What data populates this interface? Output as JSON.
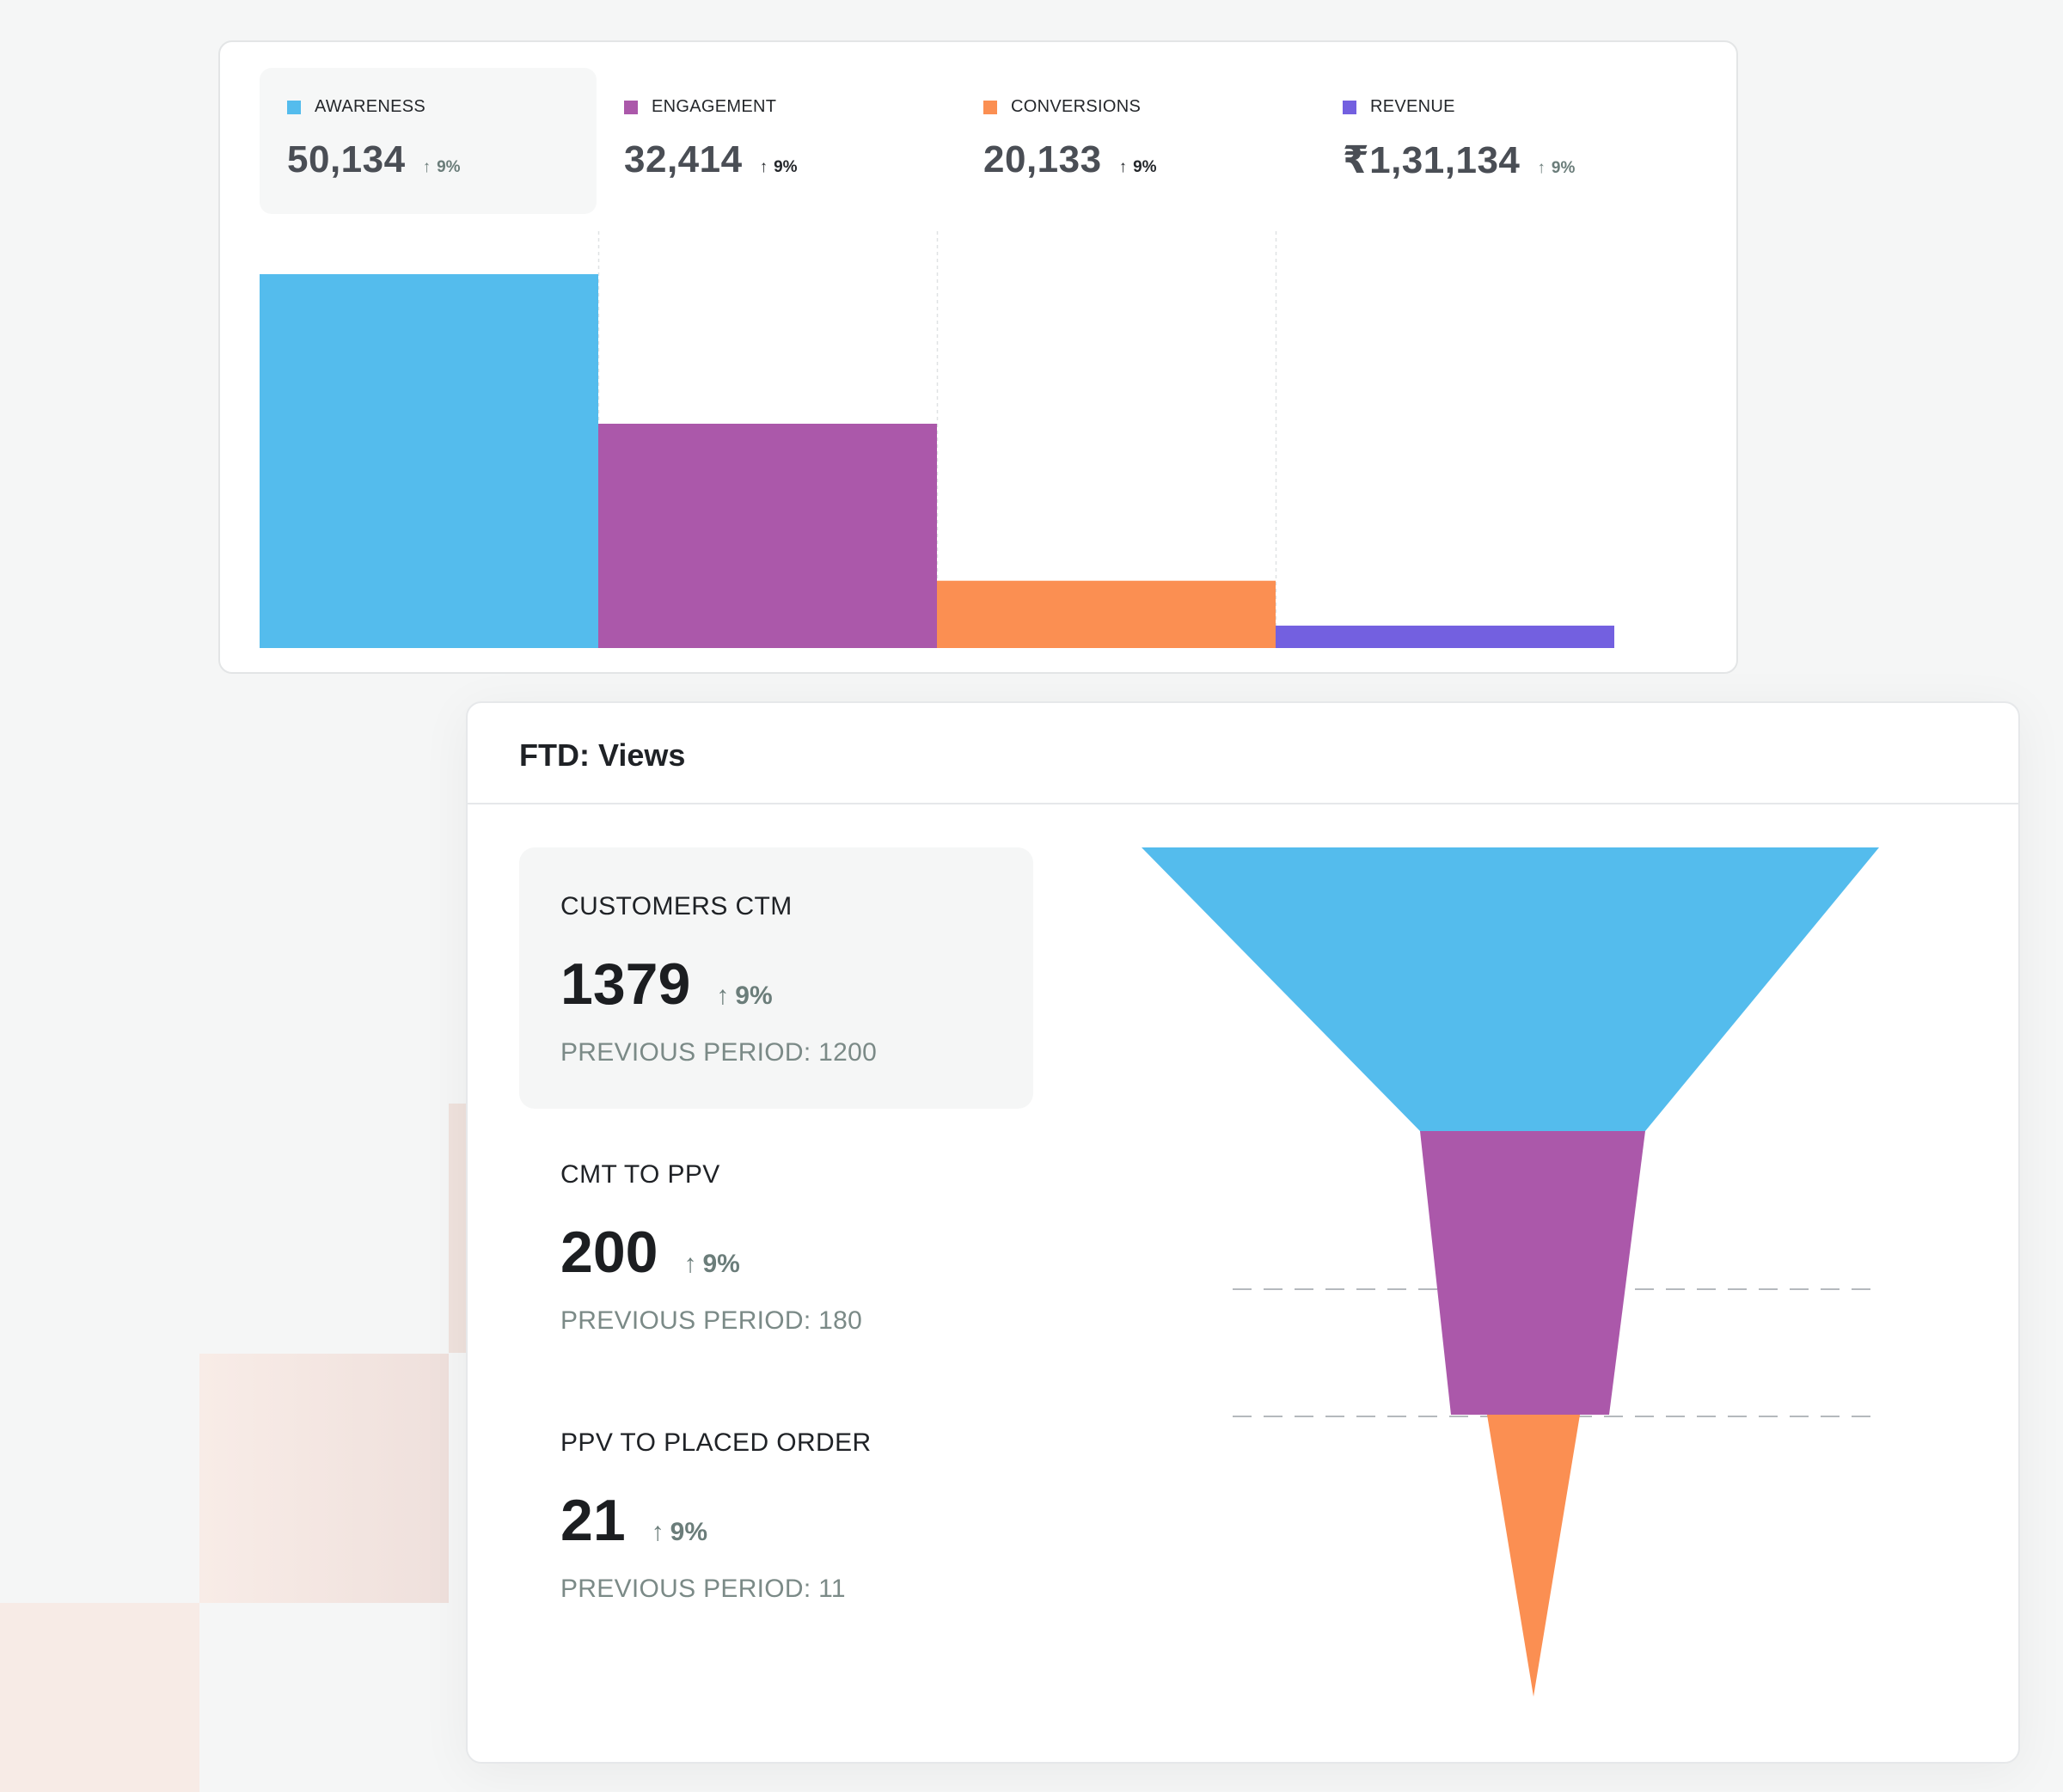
{
  "colors": {
    "awareness": "#54bced",
    "engagement": "#ab58aa",
    "conversions": "#fb8f52",
    "revenue": "#7360e0",
    "change_text": "#6b7d7a",
    "guide": "#b5b9bd"
  },
  "top_card": {
    "metrics": [
      {
        "label": "AWARENESS",
        "value": "50,134",
        "change": "9%",
        "change_icon": "arrow-up-icon",
        "color_key": "awareness"
      },
      {
        "label": "ENGAGEMENT",
        "value": "32,414",
        "change": "9%",
        "change_icon": "arrow-up-icon",
        "color_key": "engagement"
      },
      {
        "label": "CONVERSIONS",
        "value": "20,133",
        "change": "9%",
        "change_icon": "arrow-up-icon",
        "color_key": "conversions"
      },
      {
        "label": "REVENUE",
        "value": "₹1,31,134",
        "change": "9%",
        "change_icon": "arrow-up-icon",
        "color_key": "revenue"
      }
    ]
  },
  "funnel_card": {
    "title": "FTD: Views",
    "stages": [
      {
        "label": "CUSTOMERS CTM",
        "value": "1379",
        "change": "9%",
        "change_icon": "arrow-up-icon",
        "previous": "PREVIOUS PERIOD: 1200"
      },
      {
        "label": "CMT TO PPV",
        "value": "200",
        "change": "9%",
        "change_icon": "arrow-up-icon",
        "previous": "PREVIOUS PERIOD: 180"
      },
      {
        "label": "PPV TO PLACED ORDER",
        "value": "21",
        "change": "9%",
        "change_icon": "arrow-up-icon",
        "previous": "PREVIOUS PERIOD: 11"
      }
    ]
  },
  "chart_data": [
    {
      "type": "bar",
      "categories": [
        "AWARENESS",
        "ENGAGEMENT",
        "CONVERSIONS",
        "REVENUE"
      ],
      "values": [
        100,
        60,
        18,
        6
      ],
      "value_unit": "relative height, % of tallest bar",
      "title": "",
      "xlabel": "",
      "ylabel": "",
      "ylim": [
        0,
        100
      ]
    },
    {
      "type": "funnel",
      "title": "FTD: Views",
      "stages": [
        "CUSTOMERS CTM",
        "CMT TO PPV",
        "PPV TO PLACED ORDER"
      ],
      "values": [
        1379,
        200,
        21
      ],
      "previous_values": [
        1200,
        180,
        11
      ]
    }
  ]
}
